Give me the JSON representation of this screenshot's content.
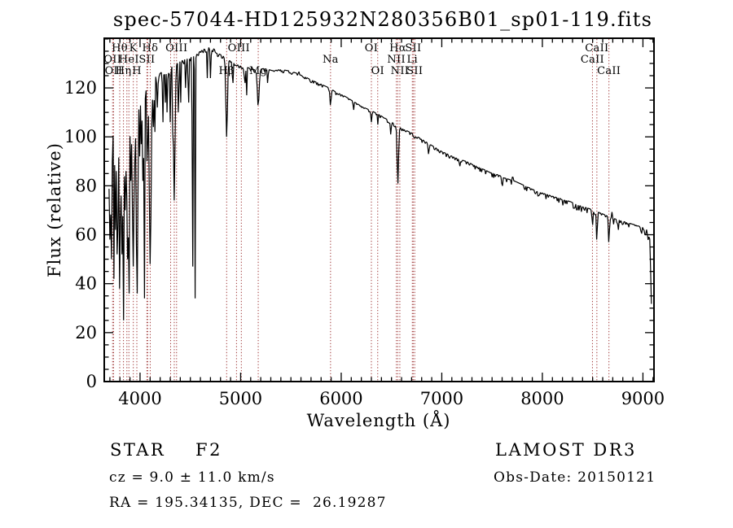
{
  "title": "spec-57044-HD125932N280356B01_sp01-119.fits",
  "chart_data": {
    "type": "line",
    "title": "spec-57044-HD125932N280356B01_sp01-119.fits",
    "xlabel": "Wavelength (Å)",
    "ylabel": "Flux (relative)",
    "xlim": [
      3644,
      9110
    ],
    "ylim": [
      0,
      140.3
    ],
    "xticks": [
      4000,
      5000,
      6000,
      7000,
      8000,
      9000
    ],
    "yticks": [
      0,
      20,
      40,
      60,
      80,
      100,
      120
    ],
    "x_minor_step": 100,
    "y_minor_step": 5,
    "grid": false,
    "legend": false,
    "curve_color": "#000000",
    "line_marker_color": "#9e3535",
    "spectral_lines": [
      {
        "wavelength": 3727,
        "label": "OII",
        "row": 2
      },
      {
        "wavelength": 3737,
        "label": "OII",
        "row": 3
      },
      {
        "wavelength": 3798,
        "label": "Hθ",
        "row": 1
      },
      {
        "wavelength": 3835,
        "label": "Hη",
        "row": 3
      },
      {
        "wavelength": 3869,
        "label": "",
        "row": 0
      },
      {
        "wavelength": 3889,
        "label": "HeI",
        "row": 2
      },
      {
        "wavelength": 3933,
        "label": "K",
        "row": 1
      },
      {
        "wavelength": 3968,
        "label": "H",
        "row": 3
      },
      {
        "wavelength": 4068,
        "label": "SII",
        "row": 2
      },
      {
        "wavelength": 4076,
        "label": "",
        "row": 0
      },
      {
        "wavelength": 4101,
        "label": "Hδ",
        "row": 1
      },
      {
        "wavelength": 4304,
        "label": "",
        "row": 0
      },
      {
        "wavelength": 4340,
        "label": "",
        "row": 0
      },
      {
        "wavelength": 4363,
        "label": "OIII",
        "row": 1
      },
      {
        "wavelength": 4861,
        "label": "Hβ",
        "row": 3
      },
      {
        "wavelength": 4959,
        "label": "",
        "row": 0
      },
      {
        "wavelength": 5007,
        "label": "OIII",
        "row": 1,
        "label_dx": -3
      },
      {
        "wavelength": 5175,
        "label": "Mg",
        "row": 3
      },
      {
        "wavelength": 5894,
        "label": "Na",
        "row": 2
      },
      {
        "wavelength": 6300,
        "label": "OI",
        "row": 1
      },
      {
        "wavelength": 6363,
        "label": "OI",
        "row": 3
      },
      {
        "wavelength": 6548,
        "label": "NII",
        "row": 2
      },
      {
        "wavelength": 6563,
        "label": "Hα",
        "row": 1
      },
      {
        "wavelength": 6583,
        "label": "NII",
        "row": 3
      },
      {
        "wavelength": 6707,
        "label": "Li",
        "row": 2
      },
      {
        "wavelength": 6716,
        "label": "SII",
        "row": 1
      },
      {
        "wavelength": 6731,
        "label": "SII",
        "row": 3
      },
      {
        "wavelength": 8498,
        "label": "CaII",
        "row": 2
      },
      {
        "wavelength": 8542,
        "label": "CaII",
        "row": 1
      },
      {
        "wavelength": 8662,
        "label": "CaII",
        "row": 3
      }
    ],
    "continuum_anchors": [
      [
        3690,
        80
      ],
      [
        3705,
        95
      ],
      [
        3727,
        105
      ],
      [
        3760,
        108
      ],
      [
        3800,
        110
      ],
      [
        3840,
        112
      ],
      [
        3880,
        114
      ],
      [
        3920,
        116
      ],
      [
        3960,
        117
      ],
      [
        4000,
        118
      ],
      [
        4040,
        119
      ],
      [
        4090,
        121
      ],
      [
        4140,
        124
      ],
      [
        4200,
        126
      ],
      [
        4270,
        128
      ],
      [
        4340,
        130
      ],
      [
        4400,
        131
      ],
      [
        4470,
        132
      ],
      [
        4540,
        133
      ],
      [
        4600,
        135
      ],
      [
        4660,
        136.5
      ],
      [
        4720,
        136.5
      ],
      [
        4780,
        134
      ],
      [
        4830,
        133
      ],
      [
        4880,
        131.5
      ],
      [
        4940,
        130
      ],
      [
        5000,
        129
      ],
      [
        5060,
        128.5
      ],
      [
        5120,
        127.5
      ],
      [
        5180,
        127.5
      ],
      [
        5240,
        128
      ],
      [
        5320,
        127
      ],
      [
        5400,
        127.5
      ],
      [
        5480,
        127
      ],
      [
        5560,
        126
      ],
      [
        5640,
        124.5
      ],
      [
        5720,
        123
      ],
      [
        5800,
        121.5
      ],
      [
        5880,
        120
      ],
      [
        5960,
        118
      ],
      [
        6040,
        116.5
      ],
      [
        6120,
        114.5
      ],
      [
        6200,
        112.5
      ],
      [
        6280,
        111
      ],
      [
        6360,
        109.5
      ],
      [
        6440,
        107.5
      ],
      [
        6520,
        105.5
      ],
      [
        6600,
        103.5
      ],
      [
        6680,
        102
      ],
      [
        6760,
        100
      ],
      [
        6840,
        98
      ],
      [
        6920,
        96
      ],
      [
        7000,
        94
      ],
      [
        7080,
        92.5
      ],
      [
        7160,
        91
      ],
      [
        7240,
        90
      ],
      [
        7320,
        88.5
      ],
      [
        7400,
        87
      ],
      [
        7480,
        85.5
      ],
      [
        7560,
        84.5
      ],
      [
        7640,
        83
      ],
      [
        7720,
        82
      ],
      [
        7800,
        80.5
      ],
      [
        7880,
        79
      ],
      [
        7960,
        77.5
      ],
      [
        8040,
        76.5
      ],
      [
        8120,
        75.5
      ],
      [
        8200,
        74.5
      ],
      [
        8280,
        73.5
      ],
      [
        8360,
        72
      ],
      [
        8440,
        71
      ],
      [
        8520,
        70
      ],
      [
        8600,
        68.5
      ],
      [
        8680,
        67
      ],
      [
        8760,
        66
      ],
      [
        8840,
        65
      ],
      [
        8920,
        64
      ],
      [
        9000,
        63
      ],
      [
        9040,
        62
      ],
      [
        9070,
        58
      ],
      [
        9082,
        38
      ],
      [
        9090,
        13
      ]
    ],
    "absorption_dips": [
      [
        3700,
        58,
        4
      ],
      [
        3712,
        50,
        4
      ],
      [
        3727,
        90,
        3
      ],
      [
        3741,
        42,
        4
      ],
      [
        3752,
        62,
        3
      ],
      [
        3762,
        86,
        3
      ],
      [
        3771,
        52,
        4
      ],
      [
        3782,
        64,
        3
      ],
      [
        3798,
        38,
        6
      ],
      [
        3812,
        76,
        3
      ],
      [
        3822,
        52,
        3
      ],
      [
        3835,
        25,
        6
      ],
      [
        3850,
        70,
        3
      ],
      [
        3861,
        86,
        3
      ],
      [
        3872,
        50,
        4
      ],
      [
        3889,
        36,
        6
      ],
      [
        3905,
        82,
        3
      ],
      [
        3920,
        70,
        3
      ],
      [
        3933,
        47,
        7
      ],
      [
        3950,
        90,
        3
      ],
      [
        3970,
        36,
        8
      ],
      [
        3995,
        92,
        3
      ],
      [
        4009,
        97,
        3
      ],
      [
        4026,
        82,
        4
      ],
      [
        4042,
        34,
        4
      ],
      [
        4068,
        90,
        3
      ],
      [
        4078,
        97,
        2.5
      ],
      [
        4101,
        48,
        9
      ],
      [
        4128,
        104,
        3
      ],
      [
        4144,
        102,
        3
      ],
      [
        4172,
        112,
        3
      ],
      [
        4227,
        106,
        4
      ],
      [
        4250,
        114,
        3
      ],
      [
        4271,
        110,
        3
      ],
      [
        4300,
        106,
        4
      ],
      [
        4326,
        102,
        3
      ],
      [
        4340,
        74,
        8
      ],
      [
        4383,
        110,
        4
      ],
      [
        4405,
        114,
        3
      ],
      [
        4455,
        120,
        3
      ],
      [
        4481,
        114,
        4
      ],
      [
        4520,
        47,
        2.5
      ],
      [
        4546,
        34,
        2.5
      ],
      [
        4668,
        124,
        4
      ],
      [
        4703,
        124,
        3
      ],
      [
        4861,
        100,
        8
      ],
      [
        4920,
        122,
        4
      ],
      [
        5040,
        122,
        4
      ],
      [
        5058,
        117,
        3
      ],
      [
        5175,
        113,
        9
      ],
      [
        5270,
        122,
        4
      ],
      [
        5894,
        113,
        6
      ],
      [
        6122,
        111,
        4
      ],
      [
        6300,
        106,
        5
      ],
      [
        6363,
        105,
        3
      ],
      [
        6494,
        101,
        4
      ],
      [
        6563,
        81,
        7
      ],
      [
        6870,
        93,
        5
      ],
      [
        7180,
        88,
        5
      ],
      [
        7600,
        80,
        5
      ],
      [
        8205,
        72,
        4
      ],
      [
        8498,
        64,
        5
      ],
      [
        8542,
        58,
        5
      ],
      [
        8662,
        57,
        5
      ],
      [
        8752,
        62,
        3
      ]
    ],
    "emission_spikes": [
      [
        5577,
        3,
        2
      ],
      [
        7705,
        5,
        3
      ],
      [
        8690,
        4,
        2
      ]
    ],
    "noise_profile": [
      [
        3690,
        8
      ],
      [
        3990,
        6
      ],
      [
        4200,
        3.5
      ],
      [
        4480,
        2
      ],
      [
        5200,
        1.3
      ],
      [
        6500,
        1.2
      ],
      [
        7400,
        1.7
      ],
      [
        8300,
        2.2
      ],
      [
        9100,
        2.8
      ]
    ],
    "noise_seed": 42
  },
  "footer": {
    "class_label": "STAR",
    "subclass_label": "F2",
    "cz_line": "cz = 9.0 ± 11.0 km/s",
    "radec_line": "RA = 195.34135, DEC =  26.19287",
    "survey": "LAMOST DR3",
    "obsdate_line": "Obs-Date: 20150121"
  }
}
